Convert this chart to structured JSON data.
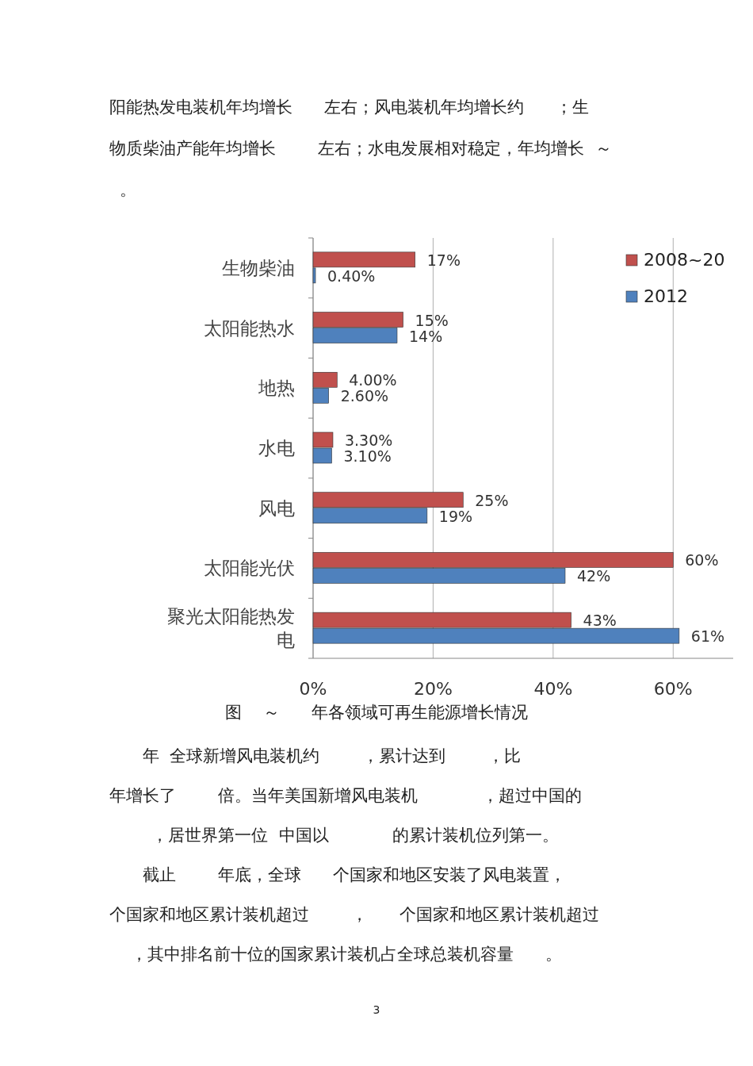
{
  "chart_data": {
    "type": "bar",
    "orientation": "horizontal",
    "categories": [
      "生物柴油",
      "太阳能热水",
      "地热",
      "水电",
      "风电",
      "太阳能光伏",
      "聚光太阳能热发电"
    ],
    "series": [
      {
        "name": "2008~20",
        "color": "#c0504d",
        "values": [
          17,
          15,
          4,
          3.3,
          25,
          60,
          43
        ],
        "value_labels": [
          "17%",
          "15%",
          "4.00%",
          "3.30%",
          "25%",
          "60%",
          "43%"
        ]
      },
      {
        "name": "2012",
        "color": "#4f81bd",
        "values": [
          0.4,
          14,
          2.6,
          3.1,
          19,
          42,
          61
        ],
        "value_labels": [
          "0.40%",
          "14%",
          "2.60%",
          "3.10%",
          "19%",
          "42%",
          "61%"
        ]
      }
    ],
    "xlim": [
      0,
      70
    ],
    "xticks": [
      {
        "value": 0,
        "label": "0%"
      },
      {
        "value": 20,
        "label": "20%"
      },
      {
        "value": 40,
        "label": "40%"
      },
      {
        "value": 60,
        "label": "60%"
      }
    ],
    "grid": "x",
    "legend": "top right",
    "annotations": [
      "阳能热发电装机年均增长      左右；风电装机年均增长约      ；生",
      "物质柴油产能年均增长        左右；水电发展相对稳定，年均增长  ～",
      "  。",
      "图    ～      年各领域可再生能源增长情况",
      "年  全球新增风电装机约        ，累计达到        ，比",
      "年增长了        倍。当年美国新增风电装机            ，超过中国的",
      "        ，居世界第一位  中国以            的累计装机位列第一。",
      "截止        年底，全球      个国家和地区安装了风电装置，",
      "个国家和地区累计装机超过        ，      个国家和地区累计装机超过",
      "    ，其中排名前十位的国家累计装机占全球总装机容量      。",
      "3"
    ]
  }
}
